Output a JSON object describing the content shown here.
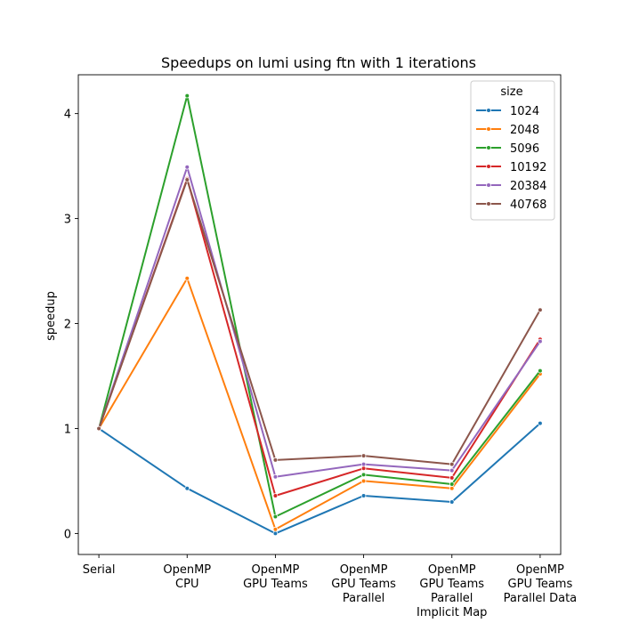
{
  "chart_data": {
    "type": "line",
    "title": "Speedups on lumi using ftn with 1 iterations",
    "xlabel": "",
    "ylabel": "speedup",
    "categories": [
      [
        "Serial"
      ],
      [
        "OpenMP",
        "CPU"
      ],
      [
        "OpenMP",
        "GPU Teams"
      ],
      [
        "OpenMP",
        "GPU Teams",
        "Parallel"
      ],
      [
        "OpenMP",
        "GPU Teams",
        "Parallel",
        "Implicit Map"
      ],
      [
        "OpenMP",
        "GPU Teams",
        "Parallel Data"
      ]
    ],
    "ylim": [
      -0.2,
      4.37
    ],
    "yticks": [
      0,
      1,
      2,
      3,
      4
    ],
    "legend": {
      "title": "size",
      "placement": "top-right"
    },
    "grid": false,
    "series": [
      {
        "name": "1024",
        "color": "#1f77b4",
        "values": [
          1.0,
          0.43,
          0.0,
          0.36,
          0.3,
          1.05
        ]
      },
      {
        "name": "2048",
        "color": "#ff7f0e",
        "values": [
          1.0,
          2.43,
          0.04,
          0.5,
          0.43,
          1.52
        ]
      },
      {
        "name": "5096",
        "color": "#2ca02c",
        "values": [
          1.0,
          4.17,
          0.16,
          0.56,
          0.47,
          1.55
        ]
      },
      {
        "name": "10192",
        "color": "#d62728",
        "values": [
          1.0,
          3.38,
          0.36,
          0.62,
          0.53,
          1.85
        ]
      },
      {
        "name": "20384",
        "color": "#9467bd",
        "values": [
          1.0,
          3.49,
          0.54,
          0.66,
          0.6,
          1.83
        ]
      },
      {
        "name": "40768",
        "color": "#8c564b",
        "values": [
          1.0,
          3.37,
          0.7,
          0.74,
          0.66,
          2.13
        ]
      }
    ]
  }
}
